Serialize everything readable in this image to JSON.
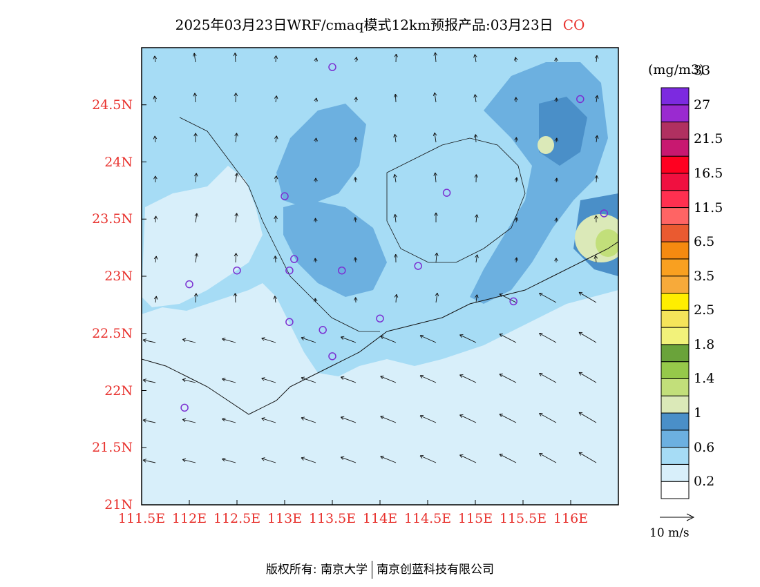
{
  "title": {
    "main": "2025年03月23日WRF/cmaq模式12km预报产品:03月23日",
    "species": "CO"
  },
  "map": {
    "lon_range": [
      111.5,
      116.5
    ],
    "lat_range": [
      21.0,
      25.0
    ],
    "x_tick_labels": [
      "111.5E",
      "112E",
      "112.5E",
      "113E",
      "113.5E",
      "114E",
      "114.5E",
      "115E",
      "115.5E",
      "116E"
    ],
    "x_tick_values": [
      111.5,
      112,
      112.5,
      113,
      113.5,
      114,
      114.5,
      115,
      115.5,
      116
    ],
    "y_tick_labels": [
      "21N",
      "21.5N",
      "22N",
      "22.5N",
      "23N",
      "23.5N",
      "24N",
      "24.5N"
    ],
    "y_tick_values": [
      21.0,
      21.5,
      22.0,
      22.5,
      23.0,
      23.5,
      24.0,
      24.5
    ],
    "background_color": "#a6dcf5",
    "station_color": "#7b2fd1"
  },
  "legend": {
    "units": "(mg/m3)",
    "labels": [
      "0.2",
      "0.6",
      "1",
      "1.4",
      "1.8",
      "2.5",
      "3.5",
      "6.5",
      "11.5",
      "16.5",
      "21.5",
      "27",
      "33"
    ],
    "colors": [
      "#ffffff",
      "#d8effa",
      "#a6dcf5",
      "#6cb0e0",
      "#4a8fc8",
      "#dbe9b8",
      "#c2df7a",
      "#96c94a",
      "#6aa33a",
      "#f2f27a",
      "#f5e45a",
      "#ffee00",
      "#f7aa3a",
      "#f9a020",
      "#f58a10",
      "#ea5a30",
      "#ff6464",
      "#ff3050",
      "#f01040",
      "#ff0020",
      "#c81870",
      "#b03060",
      "#9a2ad0",
      "#7c2ae0"
    ]
  },
  "wind": {
    "reference_label": "10 m/s"
  },
  "footer": {
    "left": "版权所有: 南京大学",
    "right": "南京创蓝科技有限公司"
  }
}
